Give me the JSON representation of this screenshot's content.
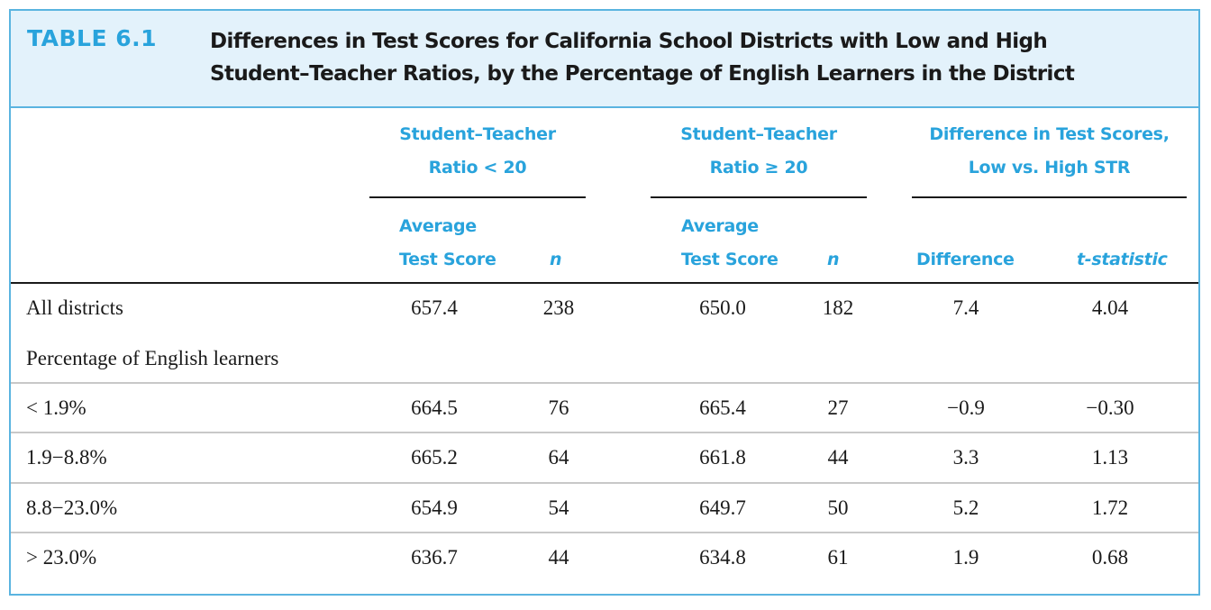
{
  "table": {
    "label": "TABLE 6.1",
    "title_line1": "Differences in Test Scores for California School Districts with Low and High",
    "title_line2": "Student–Teacher Ratios, by the Percentage of English Learners in the District"
  },
  "headers": {
    "group1_line1": "Student–Teacher",
    "group1_line2": "Ratio < 20",
    "group2_line1": "Student–Teacher",
    "group2_line2": "Ratio ≥ 20",
    "group3_line1": "Difference in Test Scores,",
    "group3_line2": "Low vs. High STR",
    "avg_line1": "Average",
    "avg_line2": "Test Score",
    "n": "n",
    "difference": "Difference",
    "tstat": "t-statistic"
  },
  "rows": [
    {
      "label": "All districts",
      "s1": "657.4",
      "n1": "238",
      "s2": "650.0",
      "n2": "182",
      "diff": "7.4",
      "t": "4.04"
    },
    {
      "label": "Percentage of English learners",
      "s1": "",
      "n1": "",
      "s2": "",
      "n2": "",
      "diff": "",
      "t": ""
    },
    {
      "label": "< 1.9%",
      "s1": "664.5",
      "n1": "76",
      "s2": "665.4",
      "n2": "27",
      "diff": "−0.9",
      "t": "−0.30"
    },
    {
      "label": "1.9−8.8%",
      "s1": "665.2",
      "n1": "64",
      "s2": "661.8",
      "n2": "44",
      "diff": "3.3",
      "t": "1.13"
    },
    {
      "label": "8.8−23.0%",
      "s1": "654.9",
      "n1": "54",
      "s2": "649.7",
      "n2": "50",
      "diff": "5.2",
      "t": "1.72"
    },
    {
      "label": "> 23.0%",
      "s1": "636.7",
      "n1": "44",
      "s2": "634.8",
      "n2": "61",
      "diff": "1.9",
      "t": "0.68"
    }
  ],
  "colors": {
    "accent": "#29a3dc",
    "border": "#5ab4e0",
    "header_bg": "#e3f2fb",
    "text": "#1a1a1a"
  }
}
